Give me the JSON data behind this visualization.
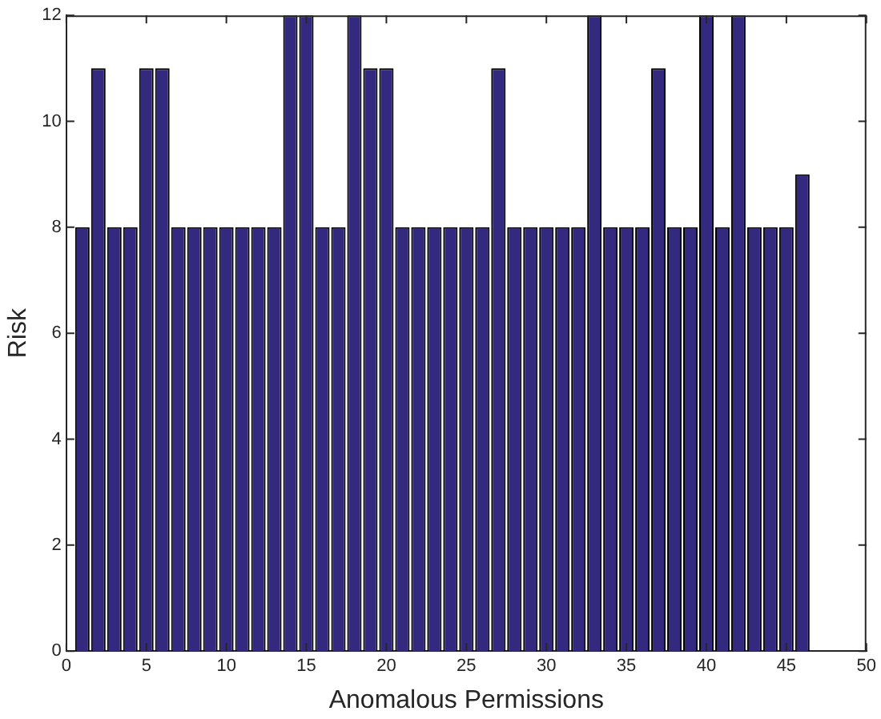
{
  "chart_data": {
    "type": "bar",
    "xlabel": "Anomalous Permissions",
    "ylabel": "Risk",
    "color": "#332a80",
    "x": [
      1,
      2,
      3,
      4,
      5,
      6,
      7,
      8,
      9,
      10,
      11,
      12,
      13,
      14,
      15,
      16,
      17,
      18,
      19,
      20,
      21,
      22,
      23,
      24,
      25,
      26,
      27,
      28,
      29,
      30,
      31,
      32,
      33,
      34,
      35,
      36,
      37,
      38,
      39,
      40,
      41,
      42,
      43,
      44,
      45,
      46
    ],
    "values": [
      8,
      11,
      8,
      8,
      11,
      11,
      8,
      8,
      8,
      8,
      8,
      8,
      8,
      12,
      12,
      8,
      8,
      12,
      11,
      11,
      8,
      8,
      8,
      8,
      8,
      8,
      11,
      8,
      8,
      8,
      8,
      8,
      12,
      8,
      8,
      8,
      11,
      8,
      8,
      12,
      8,
      12,
      8,
      8,
      8,
      9
    ],
    "xlim": [
      0,
      50
    ],
    "xticks": [
      0,
      5,
      10,
      15,
      20,
      25,
      30,
      35,
      40,
      45,
      50
    ],
    "ylim": [
      0,
      12
    ],
    "yticks": [
      0,
      2,
      4,
      6,
      8,
      10,
      12
    ],
    "grid": false,
    "legend": false
  }
}
